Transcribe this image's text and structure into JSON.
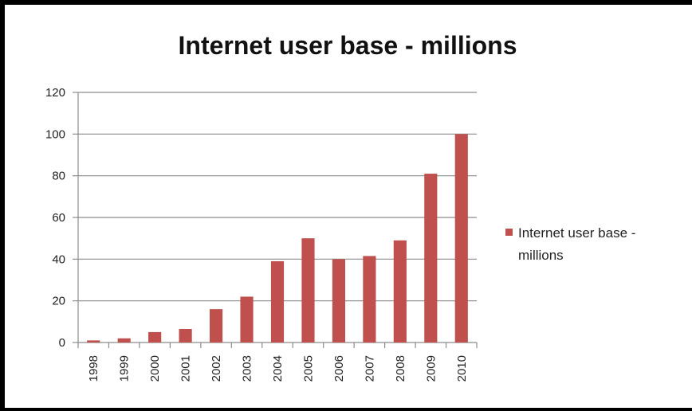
{
  "chart_data": {
    "type": "bar",
    "title": "Internet user base - millions",
    "xlabel": "",
    "ylabel": "",
    "categories": [
      "1998",
      "1999",
      "2000",
      "2001",
      "2002",
      "2003",
      "2004",
      "2005",
      "2006",
      "2007",
      "2008",
      "2009",
      "2010"
    ],
    "series": [
      {
        "name": "Internet user base - millions",
        "values": [
          1,
          2,
          5,
          6.5,
          16,
          22,
          39,
          50,
          40,
          41.5,
          49,
          81,
          100
        ],
        "color": "#c0504d"
      }
    ],
    "ylim": [
      0,
      120
    ],
    "yticks": [
      0,
      20,
      40,
      60,
      80,
      100,
      120
    ],
    "grid": true,
    "legend": {
      "placement": "right",
      "lines": [
        "Internet user base -",
        "millions"
      ]
    }
  }
}
